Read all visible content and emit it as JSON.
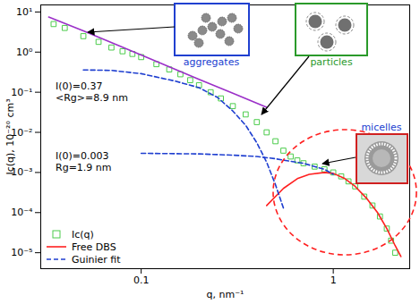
{
  "chart_data": {
    "type": "scatter",
    "x_label": "q, nm⁻¹",
    "y_label": "Ic(q), 10⁻²⁰ cm³",
    "log": true,
    "grid": false,
    "legend": "lower left",
    "xlim": [
      0.03,
      2.5
    ],
    "xticks": [
      0.1,
      1
    ],
    "ylim": [
      4e-06,
      15
    ],
    "yticks": [
      {
        "value": 1e-05,
        "label": "10⁻⁵"
      },
      {
        "value": 0.0001,
        "label": "10⁻⁴"
      },
      {
        "value": 0.001,
        "label": "10⁻³"
      },
      {
        "value": 0.01,
        "label": "10⁻²"
      },
      {
        "value": 0.1,
        "label": "10⁻¹"
      },
      {
        "value": 1,
        "label": "10⁰"
      },
      {
        "value": 10,
        "label": "10¹"
      }
    ],
    "series": [
      {
        "name": "Ic(q)",
        "type": "scatter",
        "marker": "square",
        "color": "#4ccc4c",
        "x": [
          0.035,
          0.04,
          0.05,
          0.06,
          0.07,
          0.08,
          0.09,
          0.1,
          0.12,
          0.14,
          0.16,
          0.18,
          0.2,
          0.23,
          0.26,
          0.3,
          0.35,
          0.4,
          0.45,
          0.5,
          0.55,
          0.6,
          0.65,
          0.7,
          0.8,
          0.9,
          1.0,
          1.1,
          1.2,
          1.3,
          1.45,
          1.6,
          1.75,
          1.9,
          2.0,
          2.1
        ],
        "values": [
          5,
          4,
          2.5,
          1.8,
          1.3,
          1.05,
          0.9,
          0.75,
          0.5,
          0.37,
          0.28,
          0.2,
          0.15,
          0.1,
          0.07,
          0.045,
          0.028,
          0.018,
          0.01,
          0.006,
          0.0035,
          0.0025,
          0.002,
          0.0017,
          0.0014,
          0.0012,
          0.001,
          0.0008,
          0.0006,
          0.00045,
          0.00025,
          0.00015,
          8e-05,
          4e-05,
          2e-05,
          1e-05
        ]
      },
      {
        "type": "line",
        "line_style": "solid",
        "color": "#9b30c8",
        "x": [
          0.033,
          0.05,
          0.1,
          0.2,
          0.3,
          0.45
        ],
        "values": [
          7.5,
          3.4,
          0.85,
          0.21,
          0.095,
          0.042
        ]
      },
      {
        "name": "Free DBS",
        "type": "line",
        "line_style": "solid",
        "color": "#ff2020",
        "x": [
          0.45,
          0.55,
          0.65,
          0.75,
          0.9,
          1.0,
          1.15,
          1.3,
          1.5,
          1.7,
          1.9,
          2.1,
          2.25
        ],
        "values": [
          0.00015,
          0.0004,
          0.0007,
          0.0009,
          0.001,
          0.00095,
          0.0007,
          0.00045,
          0.00022,
          0.0001,
          4e-05,
          1.5e-05,
          8e-06
        ]
      },
      {
        "name": "Guinier fit",
        "type": "line",
        "line_style": "dashed",
        "color": "#1f3fd0",
        "x": [
          0.05,
          0.07,
          0.1,
          0.15,
          0.2,
          0.25,
          0.3,
          0.35,
          0.4,
          0.45,
          0.5,
          0.55
        ],
        "values": [
          0.36,
          0.35,
          0.29,
          0.19,
          0.13,
          0.074,
          0.034,
          0.015,
          0.0055,
          0.0018,
          0.0005,
          0.00013
        ]
      },
      {
        "name": "Guinier fit",
        "type": "line",
        "line_style": "dashed",
        "color": "#1f3fd0",
        "x": [
          0.1,
          0.2,
          0.3,
          0.4,
          0.5,
          0.6,
          0.7,
          0.8,
          0.9,
          1.0
        ],
        "values": [
          0.003,
          0.0029,
          0.0027,
          0.0025,
          0.0022,
          0.0019,
          0.0017,
          0.0014,
          0.0012,
          0.0009
        ]
      }
    ],
    "annotations": [
      "I(0)=0.37",
      "<Rg>=8.9 nm",
      "I(0)=0.003",
      "Rg=1.9 nm"
    ],
    "inset_labels": [
      "aggregates",
      "particles",
      "micelles"
    ]
  }
}
